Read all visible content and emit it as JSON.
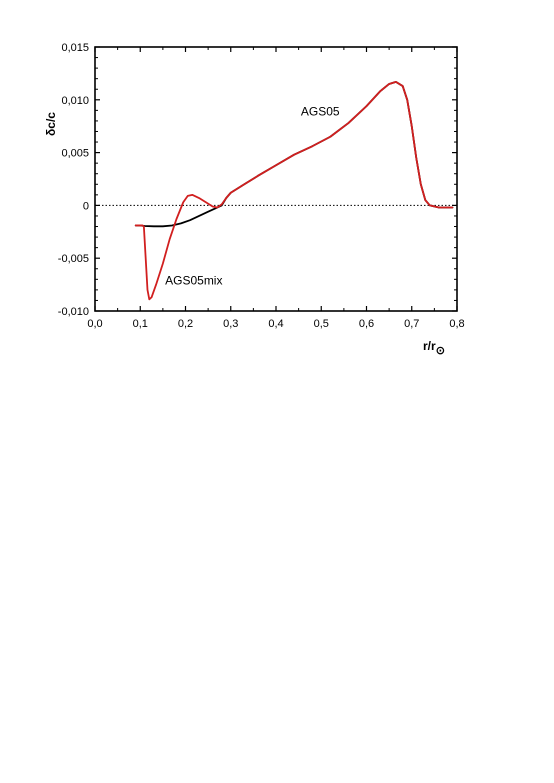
{
  "chart_data": {
    "type": "line",
    "title": "",
    "xlabel": "r/r",
    "xlabel_sub": "⊙",
    "ylabel": "δc/c",
    "xlim": [
      0.0,
      0.8
    ],
    "ylim": [
      -0.01,
      0.015
    ],
    "x_ticks": [
      {
        "value": 0.0,
        "label": "0,0"
      },
      {
        "value": 0.1,
        "label": "0,1"
      },
      {
        "value": 0.2,
        "label": "0,2"
      },
      {
        "value": 0.3,
        "label": "0,3"
      },
      {
        "value": 0.4,
        "label": "0,4"
      },
      {
        "value": 0.5,
        "label": "0,5"
      },
      {
        "value": 0.6,
        "label": "0,6"
      },
      {
        "value": 0.7,
        "label": "0,7"
      },
      {
        "value": 0.8,
        "label": "0,8"
      }
    ],
    "y_ticks": [
      {
        "value": -0.01,
        "label": "-0,010"
      },
      {
        "value": -0.005,
        "label": "-0,005"
      },
      {
        "value": 0.0,
        "label": "0"
      },
      {
        "value": 0.005,
        "label": "0,005"
      },
      {
        "value": 0.01,
        "label": "0,010"
      },
      {
        "value": 0.015,
        "label": "0,015"
      }
    ],
    "reference_line": {
      "y": 0.0,
      "style": "dotted"
    },
    "grid": false,
    "series": [
      {
        "name": "AGS05",
        "color": "#000000",
        "points": [
          [
            0.09,
            -0.0019
          ],
          [
            0.1,
            -0.0019
          ],
          [
            0.11,
            -0.00195
          ],
          [
            0.13,
            -0.00198
          ],
          [
            0.15,
            -0.00198
          ],
          [
            0.17,
            -0.0019
          ],
          [
            0.19,
            -0.0017
          ],
          [
            0.21,
            -0.0014
          ],
          [
            0.23,
            -0.001
          ],
          [
            0.25,
            -0.0006
          ],
          [
            0.27,
            -0.0002
          ],
          [
            0.28,
            0.0
          ],
          [
            0.29,
            0.0007
          ],
          [
            0.3,
            0.0012
          ],
          [
            0.33,
            0.002
          ],
          [
            0.36,
            0.0028
          ],
          [
            0.4,
            0.0038
          ],
          [
            0.44,
            0.0048
          ],
          [
            0.48,
            0.0056
          ],
          [
            0.52,
            0.0065
          ],
          [
            0.56,
            0.0078
          ],
          [
            0.6,
            0.0094
          ],
          [
            0.63,
            0.0108
          ],
          [
            0.65,
            0.0115
          ],
          [
            0.665,
            0.0117
          ],
          [
            0.68,
            0.0113
          ],
          [
            0.69,
            0.01
          ],
          [
            0.7,
            0.0075
          ],
          [
            0.71,
            0.0045
          ],
          [
            0.72,
            0.002
          ],
          [
            0.73,
            0.0005
          ],
          [
            0.74,
            0.0
          ],
          [
            0.76,
            -0.0002
          ],
          [
            0.79,
            -0.0002
          ]
        ]
      },
      {
        "name": "AGS05mix",
        "color": "#d11f1f",
        "points": [
          [
            0.09,
            -0.0019
          ],
          [
            0.105,
            -0.0019
          ],
          [
            0.108,
            -0.002
          ],
          [
            0.112,
            -0.005
          ],
          [
            0.116,
            -0.008
          ],
          [
            0.12,
            -0.0089
          ],
          [
            0.125,
            -0.0087
          ],
          [
            0.135,
            -0.0075
          ],
          [
            0.15,
            -0.0055
          ],
          [
            0.165,
            -0.0032
          ],
          [
            0.18,
            -0.0013
          ],
          [
            0.195,
            0.0003
          ],
          [
            0.205,
            0.0009
          ],
          [
            0.215,
            0.001
          ],
          [
            0.23,
            0.0007
          ],
          [
            0.245,
            0.0003
          ],
          [
            0.26,
            -0.0001
          ],
          [
            0.27,
            -0.0002
          ],
          [
            0.28,
            0.0001
          ],
          [
            0.29,
            0.0007
          ],
          [
            0.3,
            0.0012
          ],
          [
            0.33,
            0.002
          ],
          [
            0.36,
            0.0028
          ],
          [
            0.4,
            0.0038
          ],
          [
            0.44,
            0.0048
          ],
          [
            0.48,
            0.0056
          ],
          [
            0.52,
            0.0065
          ],
          [
            0.56,
            0.0078
          ],
          [
            0.6,
            0.0094
          ],
          [
            0.63,
            0.0108
          ],
          [
            0.65,
            0.0115
          ],
          [
            0.665,
            0.0117
          ],
          [
            0.68,
            0.0113
          ],
          [
            0.69,
            0.01
          ],
          [
            0.7,
            0.0075
          ],
          [
            0.71,
            0.0045
          ],
          [
            0.72,
            0.002
          ],
          [
            0.73,
            0.0005
          ],
          [
            0.74,
            0.0
          ],
          [
            0.76,
            -0.0002
          ],
          [
            0.79,
            -0.0002
          ]
        ]
      }
    ],
    "annotations": [
      {
        "text": "AGS05",
        "x": 0.455,
        "y": 0.0085
      },
      {
        "text": "AGS05mix",
        "x": 0.155,
        "y": -0.0075
      }
    ]
  }
}
